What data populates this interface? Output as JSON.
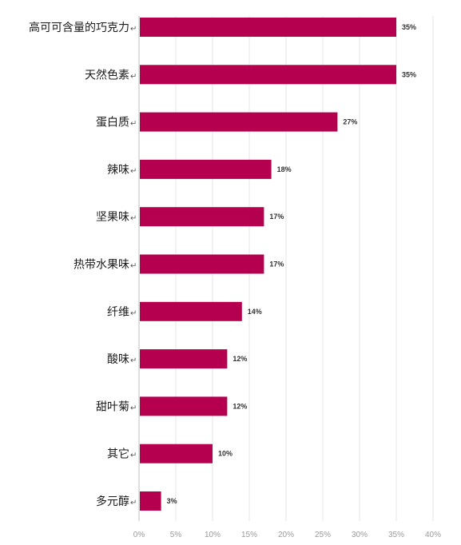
{
  "chart_data": {
    "type": "bar",
    "orientation": "horizontal",
    "categories": [
      "高可可含量的巧克力",
      "天然色素",
      "蛋白质",
      "辣味",
      "坚果味",
      "热带水果味",
      "纤维",
      "酸味",
      "甜叶菊",
      "其它",
      "多元醇"
    ],
    "values": [
      35,
      35,
      27,
      18,
      17,
      17,
      14,
      12,
      12,
      10,
      3
    ],
    "value_labels": [
      "35%",
      "35%",
      "27%",
      "18%",
      "17%",
      "17%",
      "14%",
      "12%",
      "12%",
      "10%",
      "3%"
    ],
    "x_ticks": [
      "0%",
      "5%",
      "10%",
      "15%",
      "20%",
      "25%",
      "30%",
      "35%",
      "40%"
    ],
    "xlim": [
      0,
      40
    ],
    "grid": true,
    "legend": "none",
    "bar_color": "#B5004F",
    "grid_color": "#E6E6E6",
    "axis_color": "#BFBFBF"
  }
}
